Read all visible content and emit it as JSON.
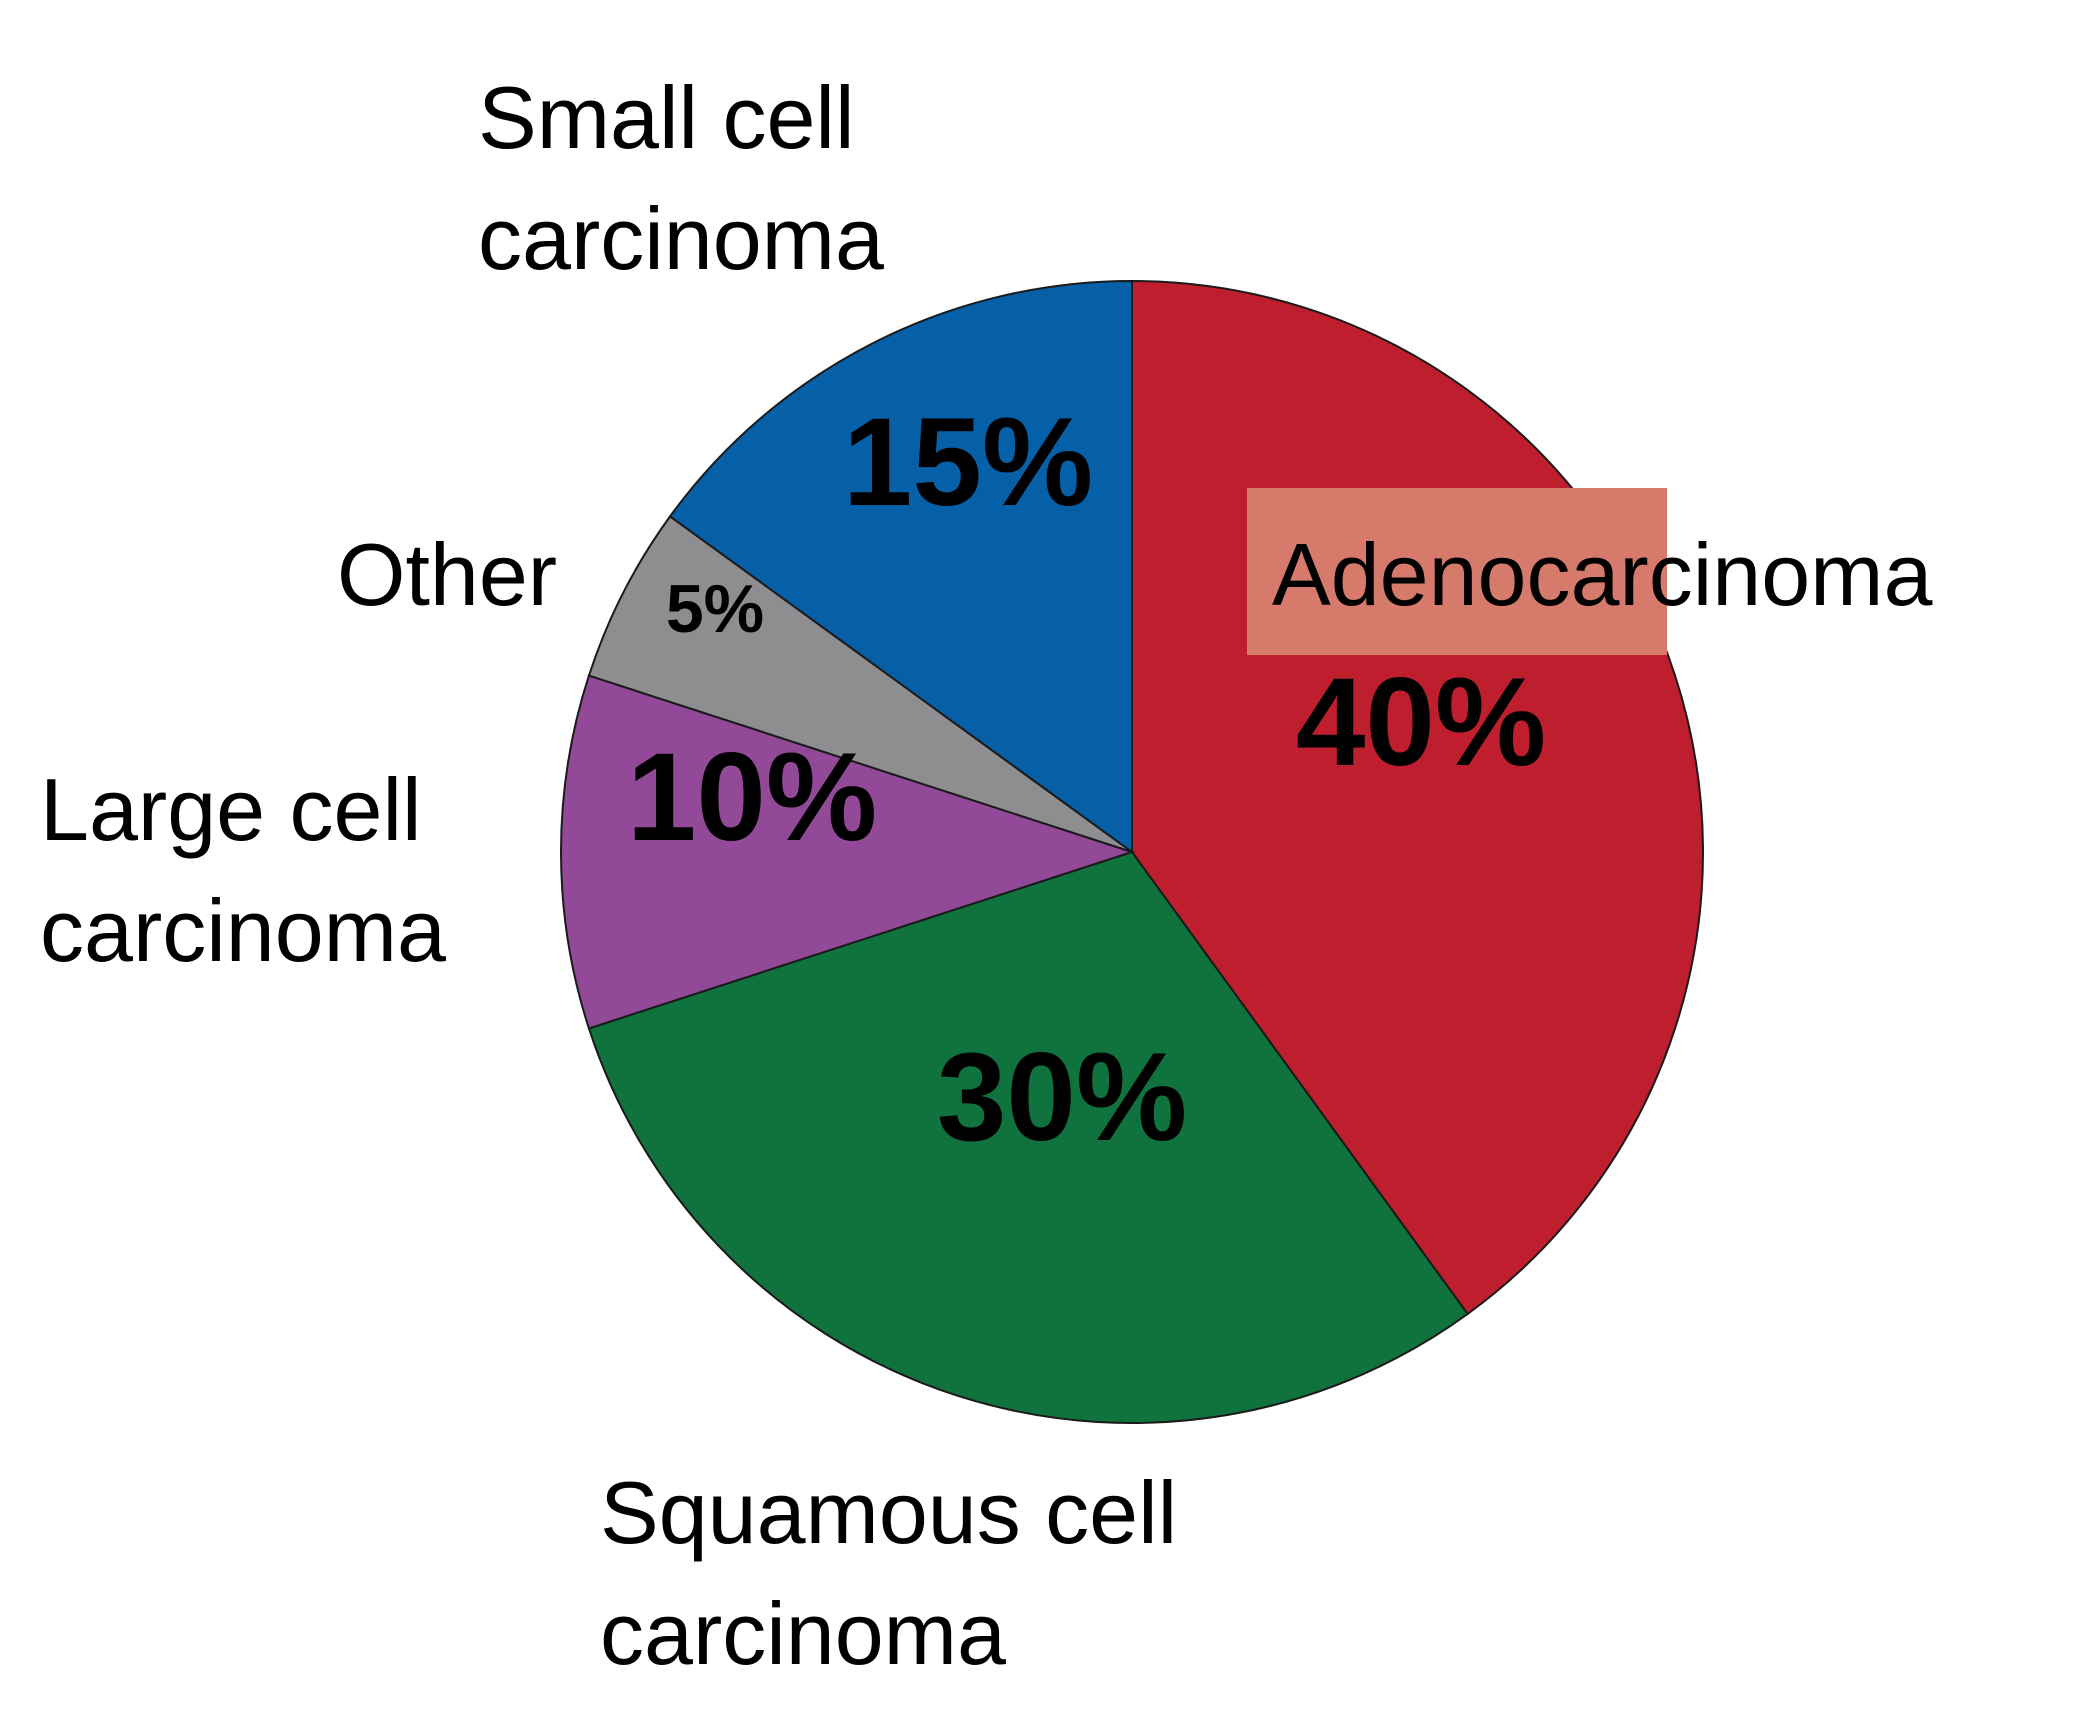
{
  "chart_data": {
    "type": "pie",
    "slices": [
      {
        "label": "Adenocarcinoma",
        "value": 40,
        "display": "40%",
        "color": "#be1e2d"
      },
      {
        "label": "Squamous cell carcinoma",
        "value": 30,
        "display": "30%",
        "color": "#10733d"
      },
      {
        "label": "Large cell carcinoma",
        "value": 10,
        "display": "10%",
        "color": "#924a98"
      },
      {
        "label": "Other",
        "value": 5,
        "display": "5%",
        "color": "#8e8e90"
      },
      {
        "label": "Small cell carcinoma",
        "value": 15,
        "display": "15%",
        "color": "#0560a8"
      }
    ],
    "label_lines": {
      "Adenocarcinoma": [
        "Adenocarcinoma"
      ],
      "Squamous cell carcinoma": [
        "Squamous cell",
        "carcinoma"
      ],
      "Large cell carcinoma": [
        "Large cell",
        "carcinoma"
      ],
      "Other": [
        "Other"
      ],
      "Small cell carcinoma": [
        "Small cell",
        "carcinoma"
      ]
    },
    "start_angle_deg": 0,
    "direction": "clockwise",
    "highlight": {
      "slice": "Adenocarcinoma",
      "color": "#d67b6c"
    }
  }
}
